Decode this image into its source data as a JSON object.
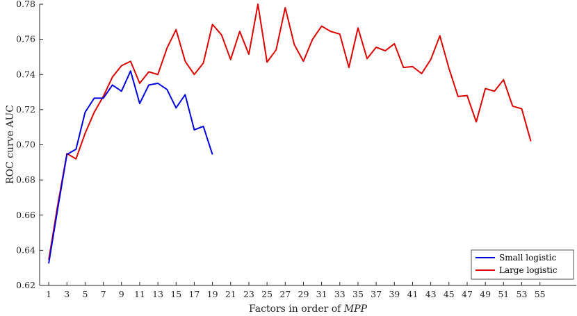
{
  "chart_data": {
    "type": "line",
    "title": "",
    "xlabel_prefix": "Factors in order of ",
    "xlabel_italic": "MPP",
    "ylabel": "ROC curve AUC",
    "xlim": [
      0,
      59
    ],
    "ylim": [
      0.62,
      0.78
    ],
    "xticks": [
      1,
      3,
      5,
      7,
      9,
      11,
      13,
      15,
      17,
      19,
      21,
      23,
      25,
      27,
      29,
      31,
      33,
      35,
      37,
      39,
      41,
      43,
      45,
      47,
      49,
      51,
      53,
      55
    ],
    "yticks": [
      0.62,
      0.64,
      0.66,
      0.68,
      0.7,
      0.72,
      0.74,
      0.76,
      0.78
    ],
    "ytick_labels": [
      "0.62",
      "0.64",
      "0.66",
      "0.68",
      "0.70",
      "0.72",
      "0.74",
      "0.76",
      "0.78"
    ],
    "grid": false,
    "legend_position": "bottom-right",
    "series": [
      {
        "name": "Small logistic",
        "color": "#0000dd",
        "x": [
          1,
          2,
          3,
          4,
          5,
          6,
          7,
          8,
          9,
          10,
          11,
          12,
          13,
          14,
          15,
          16,
          17,
          18,
          19
        ],
        "y": [
          0.6325,
          0.664,
          0.6945,
          0.6975,
          0.7185,
          0.7265,
          0.7265,
          0.734,
          0.7305,
          0.742,
          0.7235,
          0.734,
          0.735,
          0.7315,
          0.721,
          0.7285,
          0.7085,
          0.7105,
          0.6945
        ]
      },
      {
        "name": "Large logistic",
        "color": "#dd0000",
        "x": [
          1,
          2,
          3,
          4,
          5,
          6,
          7,
          8,
          9,
          10,
          11,
          12,
          13,
          14,
          15,
          16,
          17,
          18,
          19,
          20,
          21,
          22,
          23,
          24,
          25,
          26,
          27,
          28,
          29,
          30,
          31,
          32,
          33,
          34,
          35,
          36,
          37,
          38,
          39,
          40,
          41,
          42,
          43,
          44,
          45,
          46,
          47,
          48,
          49,
          50,
          51,
          52,
          53,
          54
        ],
        "y": [
          0.6345,
          0.666,
          0.695,
          0.692,
          0.7065,
          0.7185,
          0.7275,
          0.7385,
          0.745,
          0.7475,
          0.735,
          0.7415,
          0.74,
          0.755,
          0.7655,
          0.7475,
          0.74,
          0.7465,
          0.7685,
          0.7625,
          0.7485,
          0.7645,
          0.7515,
          0.78,
          0.747,
          0.754,
          0.778,
          0.757,
          0.7475,
          0.76,
          0.7675,
          0.7645,
          0.763,
          0.744,
          0.7665,
          0.749,
          0.7555,
          0.7535,
          0.7575,
          0.744,
          0.7445,
          0.7405,
          0.7485,
          0.762,
          0.7435,
          0.7275,
          0.728,
          0.713,
          0.732,
          0.7305,
          0.737,
          0.722,
          0.7205,
          0.702
        ]
      }
    ]
  }
}
